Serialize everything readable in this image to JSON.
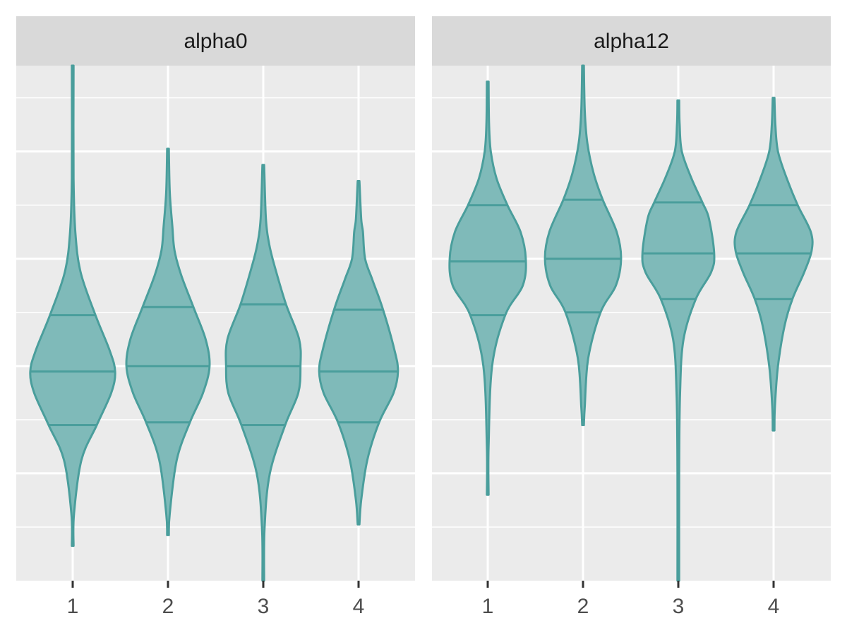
{
  "chart_data": {
    "type": "violin",
    "categories": [
      "1",
      "2",
      "3",
      "4"
    ],
    "ylim": [
      0,
      19.2
    ],
    "grid": true,
    "legend": "none",
    "colors": {
      "fill": "#7fbab9",
      "stroke": "#4a9e9c",
      "panel": "#ebebeb",
      "strip": "#d9d9d9",
      "grid": "#ffffff"
    },
    "panels": [
      {
        "label": "alpha0",
        "violins": [
          {
            "category": "1",
            "min": 1.3,
            "max": 19.2,
            "q1": 5.8,
            "median": 7.8,
            "q3": 9.9,
            "mode": 7.8,
            "shape": [
              [
                2.5,
                0.03
              ],
              [
                4.5,
                0.2
              ],
              [
                5.8,
                0.55
              ],
              [
                7.0,
                0.88
              ],
              [
                7.8,
                0.97
              ],
              [
                8.6,
                0.84
              ],
              [
                9.9,
                0.52
              ],
              [
                11.5,
                0.18
              ],
              [
                13.0,
                0.06
              ],
              [
                15.0,
                0.02
              ]
            ]
          },
          {
            "category": "2",
            "min": 1.7,
            "max": 16.1,
            "q1": 5.9,
            "median": 8.0,
            "q3": 10.2,
            "mode": 8.0,
            "shape": [
              [
                2.5,
                0.04
              ],
              [
                4.5,
                0.2
              ],
              [
                5.9,
                0.5
              ],
              [
                7.0,
                0.8
              ],
              [
                8.0,
                0.95
              ],
              [
                9.0,
                0.86
              ],
              [
                10.2,
                0.58
              ],
              [
                11.4,
                0.3
              ],
              [
                12.3,
                0.15
              ],
              [
                13.2,
                0.1
              ],
              [
                14.5,
                0.04
              ]
            ]
          },
          {
            "category": "3",
            "min": 0.0,
            "max": 15.5,
            "q1": 5.8,
            "median": 8.0,
            "q3": 10.3,
            "mode": 7.9,
            "shape": [
              [
                2.0,
                0.03
              ],
              [
                4.0,
                0.15
              ],
              [
                5.8,
                0.5
              ],
              [
                7.0,
                0.8
              ],
              [
                8.0,
                0.85
              ],
              [
                9.0,
                0.82
              ],
              [
                10.3,
                0.52
              ],
              [
                11.6,
                0.28
              ],
              [
                12.5,
                0.14
              ],
              [
                13.5,
                0.06
              ]
            ]
          },
          {
            "category": "4",
            "min": 2.1,
            "max": 14.9,
            "q1": 5.9,
            "median": 7.8,
            "q3": 10.1,
            "mode": 7.8,
            "shape": [
              [
                3.0,
                0.06
              ],
              [
                4.5,
                0.2
              ],
              [
                5.9,
                0.47
              ],
              [
                7.0,
                0.8
              ],
              [
                7.8,
                0.9
              ],
              [
                8.6,
                0.82
              ],
              [
                10.1,
                0.56
              ],
              [
                11.2,
                0.32
              ],
              [
                12.0,
                0.15
              ],
              [
                13.0,
                0.1
              ],
              [
                13.5,
                0.06
              ]
            ]
          }
        ]
      },
      {
        "label": "alpha12",
        "violins": [
          {
            "category": "1",
            "min": 3.2,
            "max": 18.6,
            "q1": 9.9,
            "median": 11.9,
            "q3": 14.0,
            "mode": 12.0,
            "shape": [
              [
                5.0,
                0.02
              ],
              [
                8.0,
                0.1
              ],
              [
                9.9,
                0.4
              ],
              [
                11.0,
                0.8
              ],
              [
                12.0,
                0.87
              ],
              [
                13.0,
                0.75
              ],
              [
                14.0,
                0.45
              ],
              [
                15.0,
                0.2
              ],
              [
                16.0,
                0.07
              ],
              [
                17.0,
                0.03
              ]
            ]
          },
          {
            "category": "2",
            "min": 5.8,
            "max": 19.2,
            "q1": 10.0,
            "median": 12.0,
            "q3": 14.2,
            "mode": 12.0,
            "shape": [
              [
                6.5,
                0.04
              ],
              [
                8.3,
                0.12
              ],
              [
                10.0,
                0.4
              ],
              [
                11.0,
                0.75
              ],
              [
                12.0,
                0.87
              ],
              [
                13.0,
                0.77
              ],
              [
                14.2,
                0.45
              ],
              [
                15.2,
                0.24
              ],
              [
                16.3,
                0.1
              ],
              [
                17.5,
                0.04
              ]
            ]
          },
          {
            "category": "3",
            "min": 0.0,
            "max": 17.9,
            "q1": 10.5,
            "median": 12.2,
            "q3": 14.1,
            "mode": 12.2,
            "shape": [
              [
                4.0,
                0.02
              ],
              [
                7.0,
                0.04
              ],
              [
                9.0,
                0.12
              ],
              [
                10.5,
                0.4
              ],
              [
                11.5,
                0.75
              ],
              [
                12.2,
                0.82
              ],
              [
                13.5,
                0.7
              ],
              [
                14.1,
                0.55
              ],
              [
                15.0,
                0.3
              ],
              [
                16.0,
                0.08
              ],
              [
                17.0,
                0.03
              ]
            ]
          },
          {
            "category": "4",
            "min": 5.6,
            "max": 18.0,
            "q1": 10.5,
            "median": 12.2,
            "q3": 14.0,
            "mode": 12.3,
            "shape": [
              [
                6.5,
                0.03
              ],
              [
                8.0,
                0.1
              ],
              [
                9.5,
                0.25
              ],
              [
                10.5,
                0.43
              ],
              [
                11.5,
                0.7
              ],
              [
                12.3,
                0.87
              ],
              [
                13.0,
                0.85
              ],
              [
                14.0,
                0.55
              ],
              [
                15.0,
                0.3
              ],
              [
                16.0,
                0.1
              ],
              [
                17.0,
                0.04
              ]
            ]
          }
        ]
      }
    ]
  }
}
